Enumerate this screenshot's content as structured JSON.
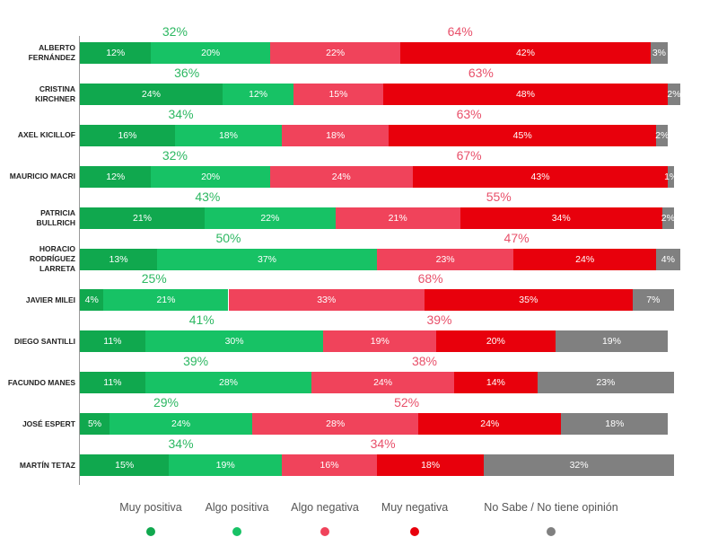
{
  "chart_data": {
    "type": "stacked_bar_horizontal",
    "categories": [
      "ALBERTO FERNÁNDEZ",
      "CRISTINA KIRCHNER",
      "AXEL KICILLOF",
      "MAURICIO MACRI",
      "PATRICIA BULLRICH",
      "HORACIO RODRÍGUEZ LARRETA",
      "JAVIER MILEI",
      "DIEGO SANTILLI",
      "FACUNDO MANES",
      "JOSÉ ESPERT",
      "MARTÍN TETAZ"
    ],
    "series": [
      {
        "name": "Muy positiva",
        "color": "#10a84e",
        "values": [
          12,
          24,
          16,
          12,
          21,
          13,
          4,
          11,
          11,
          5,
          15
        ],
        "value_labels": [
          "12%",
          "24%",
          "16%",
          "12%",
          "21%",
          "13%",
          "4%",
          "11%",
          "11%",
          "5%",
          "15%"
        ]
      },
      {
        "name": "Algo positiva",
        "color": "#17c265",
        "values": [
          20,
          12,
          18,
          20,
          22,
          37,
          21,
          30,
          28,
          24,
          19
        ],
        "value_labels": [
          "20%",
          "12%",
          "18%",
          "20%",
          "22%",
          "37%",
          "21%",
          "30%",
          "28%",
          "24%",
          "19%"
        ]
      },
      {
        "name": "Algo negativa",
        "color": "#f0435b",
        "values": [
          22,
          15,
          18,
          24,
          21,
          23,
          33,
          19,
          24,
          28,
          16
        ],
        "value_labels": [
          "22%",
          "15%",
          "18%",
          "24%",
          "21%",
          "23%",
          "33%",
          "19%",
          "24%",
          "28%",
          "16%"
        ]
      },
      {
        "name": "Muy negativa",
        "color": "#e8000c",
        "values": [
          42,
          48,
          45,
          43,
          34,
          24,
          35,
          20,
          14,
          24,
          18
        ],
        "value_labels": [
          "42%",
          "48%",
          "45%",
          "43%",
          "34%",
          "24%",
          "35%",
          "20%",
          "14%",
          "24%",
          "18%"
        ]
      },
      {
        "name": "No Sabe / No tiene opinión",
        "color": "#808080",
        "values": [
          3,
          2,
          2,
          1,
          2,
          4,
          7,
          19,
          23,
          18,
          32
        ],
        "value_labels": [
          "3%",
          "2%",
          "2%",
          "1%",
          "2%",
          "4%",
          "7%",
          "19%",
          "23%",
          "18%",
          "32%"
        ]
      }
    ],
    "positive_totals": [
      32,
      36,
      34,
      32,
      43,
      50,
      25,
      41,
      39,
      29,
      34
    ],
    "positive_total_labels": [
      "32%",
      "36%",
      "34%",
      "32%",
      "43%",
      "50%",
      "25%",
      "41%",
      "39%",
      "29%",
      "34%"
    ],
    "negative_totals": [
      64,
      63,
      63,
      67,
      55,
      47,
      68,
      39,
      38,
      52,
      34
    ],
    "negative_total_labels": [
      "64%",
      "63%",
      "63%",
      "67%",
      "55%",
      "47%",
      "68%",
      "39%",
      "38%",
      "52%",
      "34%"
    ],
    "positive_total_color": "#2db862",
    "negative_total_color": "#e8506a"
  }
}
